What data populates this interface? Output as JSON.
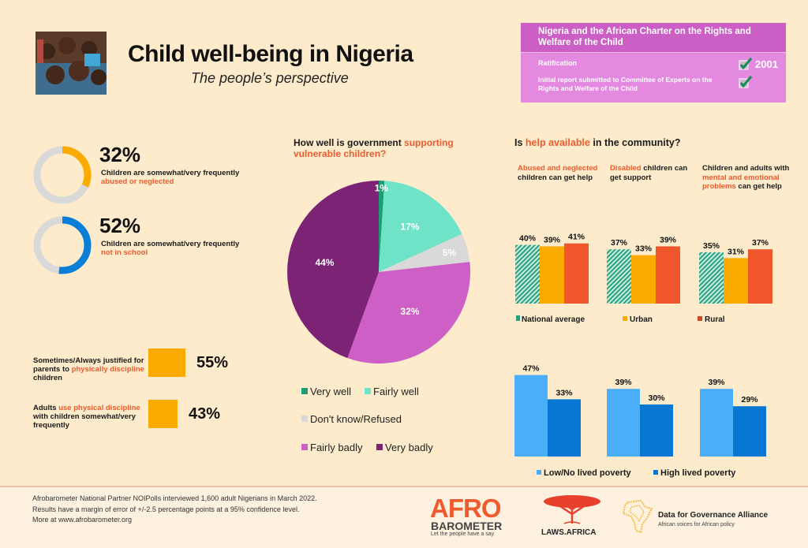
{
  "header": {
    "title": "Child well-being in Nigeria",
    "subtitle": "The people’s perspective",
    "photo_alt": "group-of-children-photo"
  },
  "charter": {
    "title": "Nigeria and the African Charter on the Rights and Welfare of the Child",
    "ratification_label": "Ratification",
    "ratification_year": "2001",
    "report_label": "Initial report submitted to Committee of Experts on the Rights and Welfare of the Child"
  },
  "rings": [
    {
      "value": 32,
      "pct_label": "32%",
      "text_plain": "Children are somewhat/very frequently ",
      "text_accent": "abused or neglected",
      "color": "#fbaa00"
    },
    {
      "value": 52,
      "pct_label": "52%",
      "text_plain": "Children are somewhat/very frequently ",
      "text_accent": "not in school",
      "color": "#0a7fd8"
    }
  ],
  "discipline": [
    {
      "pre": "Sometimes/Always justified for parents to ",
      "accent": "physically discipline",
      "post": " children",
      "pct_label": "55%"
    },
    {
      "pre": "Adults ",
      "accent": "use physical discipline",
      "post": " with children somewhat/very frequently",
      "pct_label": "43%"
    }
  ],
  "pie_section": {
    "title_plain": "How well is government ",
    "title_accent": "supporting vulnerable children?"
  },
  "help_section": {
    "title_pre": "Is ",
    "title_accent": "help available",
    "title_post": " in the community?",
    "categories": [
      {
        "accent": "Abused and neglected",
        "plain": " children can get help",
        "accent_first": true
      },
      {
        "accent": "Disabled",
        "plain": " children can get support",
        "accent_first": true
      },
      {
        "pre": "Children and adults with ",
        "accent": "mental and emotional problems",
        "post": " can get help"
      }
    ]
  },
  "footer": {
    "lines": [
      "Afrobarometer National Partner NOIPolls interviewed 1,600 adult Nigerians in March 2022.",
      "Results have a margin of error of +/-2.5 percentage points at a 95% confidence level.",
      "More at www.afrobarometer.org"
    ],
    "logos": {
      "afro_top": "AFRO",
      "afro_mid": "BAROMETER",
      "afro_tag": "Let the people have a say",
      "laws": "LAWS.AFRICA",
      "d4g_title": "Data for Governance Alliance",
      "d4g_tag": "African voices for African policy"
    }
  },
  "chart_data": [
    {
      "type": "pie",
      "title": "How well is government supporting vulnerable children?",
      "legend_position": "bottom",
      "slices": [
        {
          "label": "Very well",
          "value": 1,
          "color": "#1e9c73"
        },
        {
          "label": "Fairly well",
          "value": 17,
          "color": "#6fe3c7"
        },
        {
          "label": "Don't know/Refused",
          "value": 5,
          "color": "#d9d9d9"
        },
        {
          "label": "Fairly badly",
          "value": 32,
          "color": "#cd5fc6"
        },
        {
          "label": "Very badly",
          "value": 44,
          "color": "#7c2375"
        }
      ]
    },
    {
      "type": "bar",
      "title": "Is help available in the community? (by location)",
      "categories": [
        "Abused and neglected children can get help",
        "Disabled children can get support",
        "Children and adults with mental and emotional problems can get help"
      ],
      "series": [
        {
          "name": "National average",
          "values": [
            40,
            37,
            35
          ],
          "color": "#2aa07f",
          "pattern": "hatched"
        },
        {
          "name": "Urban",
          "values": [
            39,
            33,
            31
          ],
          "color": "#fbaa00"
        },
        {
          "name": "Rural",
          "values": [
            41,
            39,
            37
          ],
          "color": "#f0562c"
        }
      ],
      "legend_position": "bottom",
      "ylim": [
        0,
        50
      ]
    },
    {
      "type": "bar",
      "title": "Is help available in the community? (by lived poverty)",
      "categories": [
        "Abused and neglected children can get help",
        "Disabled children can get support",
        "Children and adults with mental and emotional problems can get help"
      ],
      "series": [
        {
          "name": "Low/No lived poverty",
          "values": [
            47,
            39,
            39
          ],
          "color": "#4aaef9"
        },
        {
          "name": "High lived poverty",
          "values": [
            33,
            30,
            29
          ],
          "color": "#0877d4"
        }
      ],
      "legend_position": "bottom",
      "ylim": [
        0,
        50
      ]
    }
  ]
}
